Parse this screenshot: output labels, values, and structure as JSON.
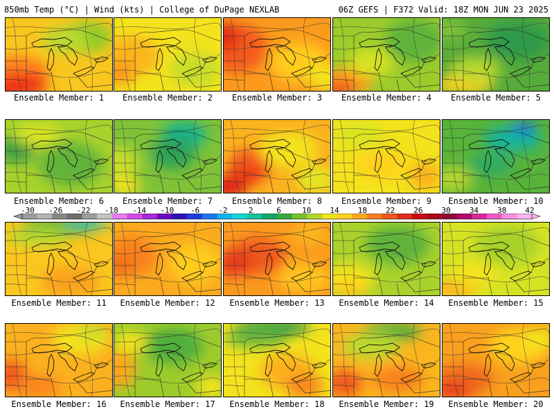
{
  "header": {
    "left": "850mb Temp (°C) | Wind (kts) | College of DuPage NEXLAB",
    "right": "06Z GEFS | F372 Valid: 18Z MON JUN 23 2025"
  },
  "panels": [
    {
      "label": "Ensemble Member: 1",
      "base": "#f9c61f",
      "blobs": [
        [
          "#ff7d1f",
          0.1,
          0.75,
          0.5,
          0.4
        ],
        [
          "#d60a15",
          0.05,
          0.95,
          0.35,
          0.22
        ],
        [
          "#ee3219",
          0.15,
          0.9,
          0.4,
          0.25
        ],
        [
          "#91cb2c",
          0.75,
          0.25,
          0.4,
          0.35
        ],
        [
          "#b9d92e",
          0.55,
          0.3,
          0.35,
          0.3
        ]
      ]
    },
    {
      "label": "Ensemble Member: 2",
      "base": "#f3e31c",
      "blobs": [
        [
          "#fbb51f",
          0.15,
          0.5,
          0.45,
          0.45
        ],
        [
          "#c9dd2a",
          0.75,
          0.7,
          0.4,
          0.4
        ],
        [
          "#f9961e",
          0.05,
          0.75,
          0.25,
          0.25
        ]
      ]
    },
    {
      "label": "Ensemble Member: 3",
      "base": "#fb9b1e",
      "blobs": [
        [
          "#f35a1d",
          0.1,
          0.4,
          0.5,
          0.55
        ],
        [
          "#ffcc1f",
          0.7,
          0.6,
          0.45,
          0.45
        ],
        [
          "#f3e31c",
          0.95,
          0.8,
          0.3,
          0.3
        ],
        [
          "#e62a19",
          0.0,
          0.25,
          0.25,
          0.3
        ]
      ]
    },
    {
      "label": "Ensemble Member: 4",
      "base": "#9ccc2c",
      "blobs": [
        [
          "#5fb33b",
          0.75,
          0.3,
          0.45,
          0.5
        ],
        [
          "#ffa21f",
          0.1,
          0.85,
          0.45,
          0.3
        ],
        [
          "#f35a1d",
          0.05,
          0.95,
          0.3,
          0.2
        ],
        [
          "#d7e324",
          0.35,
          0.6,
          0.35,
          0.3
        ]
      ]
    },
    {
      "label": "Ensemble Member: 5",
      "base": "#57ab3a",
      "blobs": [
        [
          "#2e9a4a",
          0.7,
          0.3,
          0.5,
          0.45
        ],
        [
          "#ffd21f",
          0.2,
          0.9,
          0.45,
          0.22
        ],
        [
          "#b7d82e",
          0.3,
          0.7,
          0.4,
          0.3
        ],
        [
          "#7fc238",
          0.05,
          0.15,
          0.3,
          0.25
        ]
      ]
    },
    {
      "label": "Ensemble Member: 6",
      "base": "#a7d22c",
      "blobs": [
        [
          "#62b33a",
          0.6,
          0.6,
          0.5,
          0.5
        ],
        [
          "#3f9f44",
          0.1,
          0.4,
          0.3,
          0.3
        ],
        [
          "#d9e424",
          0.3,
          0.2,
          0.35,
          0.25
        ]
      ]
    },
    {
      "label": "Ensemble Member: 7",
      "base": "#7fc238",
      "blobs": [
        [
          "#16b48c",
          0.65,
          0.2,
          0.35,
          0.3
        ],
        [
          "#2fa257",
          0.55,
          0.45,
          0.35,
          0.35
        ],
        [
          "#c8dd2a",
          0.05,
          0.6,
          0.3,
          0.4
        ],
        [
          "#f3e31c",
          0.1,
          0.9,
          0.25,
          0.2
        ]
      ]
    },
    {
      "label": "Ensemble Member: 8",
      "base": "#fbb21f",
      "blobs": [
        [
          "#f35a1d",
          0.25,
          0.6,
          0.35,
          0.35
        ],
        [
          "#d60a15",
          0.05,
          0.9,
          0.3,
          0.2
        ],
        [
          "#ee3a19",
          0.2,
          0.75,
          0.3,
          0.2
        ],
        [
          "#f3e31c",
          0.6,
          0.4,
          0.45,
          0.4
        ],
        [
          "#e4e624",
          0.85,
          0.8,
          0.3,
          0.3
        ]
      ]
    },
    {
      "label": "Ensemble Member: 9",
      "base": "#f3e31c",
      "blobs": [
        [
          "#dbe423",
          0.25,
          0.2,
          0.4,
          0.3
        ],
        [
          "#ffd21f",
          0.45,
          0.6,
          0.4,
          0.35
        ],
        [
          "#fbb01f",
          0.85,
          0.75,
          0.25,
          0.3
        ]
      ]
    },
    {
      "label": "Ensemble Member: 10",
      "base": "#58b33a",
      "blobs": [
        [
          "#12b39a",
          0.65,
          0.25,
          0.45,
          0.3
        ],
        [
          "#1e7cf0",
          0.75,
          0.1,
          0.2,
          0.12
        ],
        [
          "#0c3ed0",
          0.8,
          0.1,
          0.08,
          0.08
        ],
        [
          "#b3d62e",
          0.1,
          0.8,
          0.3,
          0.3
        ],
        [
          "#2eaa62",
          0.45,
          0.6,
          0.35,
          0.25
        ]
      ]
    },
    {
      "label": "Ensemble Member: 11",
      "base": "#fbc61f",
      "blobs": [
        [
          "#58b33a",
          0.5,
          0.05,
          0.6,
          0.2
        ],
        [
          "#18c0b8",
          0.75,
          0.0,
          0.35,
          0.12
        ],
        [
          "#b9d92e",
          0.3,
          0.2,
          0.5,
          0.2
        ],
        [
          "#f9a31e",
          0.6,
          0.8,
          0.45,
          0.35
        ]
      ]
    },
    {
      "label": "Ensemble Member: 12",
      "base": "#fbaa1f",
      "blobs": [
        [
          "#f9811e",
          0.15,
          0.45,
          0.4,
          0.45
        ],
        [
          "#f06a1e",
          0.05,
          0.6,
          0.2,
          0.2
        ],
        [
          "#ffcc1f",
          0.75,
          0.55,
          0.4,
          0.45
        ]
      ]
    },
    {
      "label": "Ensemble Member: 13",
      "base": "#fb9a1e",
      "blobs": [
        [
          "#f0581d",
          0.3,
          0.45,
          0.45,
          0.4
        ],
        [
          "#e83e1a",
          0.1,
          0.55,
          0.3,
          0.3
        ],
        [
          "#ffc41f",
          0.75,
          0.75,
          0.4,
          0.35
        ],
        [
          "#fbb51f",
          0.8,
          0.15,
          0.3,
          0.25
        ]
      ]
    },
    {
      "label": "Ensemble Member: 14",
      "base": "#aad22c",
      "blobs": [
        [
          "#5fb33b",
          0.6,
          0.3,
          0.5,
          0.45
        ],
        [
          "#f3e31c",
          0.15,
          0.75,
          0.4,
          0.35
        ],
        [
          "#ffcc1f",
          0.15,
          0.9,
          0.3,
          0.2
        ]
      ]
    },
    {
      "label": "Ensemble Member: 15",
      "base": "#d6e324",
      "blobs": [
        [
          "#a7d22c",
          0.6,
          0.3,
          0.5,
          0.45
        ],
        [
          "#f9b41f",
          0.1,
          0.9,
          0.4,
          0.2
        ],
        [
          "#f3e31c",
          0.3,
          0.7,
          0.35,
          0.3
        ]
      ]
    },
    {
      "label": "Ensemble Member: 16",
      "base": "#fbb01f",
      "blobs": [
        [
          "#f35a1d",
          0.05,
          0.7,
          0.25,
          0.35
        ],
        [
          "#f3e31c",
          0.7,
          0.2,
          0.45,
          0.35
        ],
        [
          "#cadd2a",
          0.8,
          0.1,
          0.25,
          0.2
        ],
        [
          "#f9851e",
          0.3,
          0.85,
          0.35,
          0.25
        ]
      ]
    },
    {
      "label": "Ensemble Member: 17",
      "base": "#9ccc2c",
      "blobs": [
        [
          "#4fae3d",
          0.55,
          0.3,
          0.45,
          0.4
        ],
        [
          "#fba61f",
          0.05,
          0.6,
          0.25,
          0.45
        ],
        [
          "#f3e31c",
          0.15,
          0.25,
          0.25,
          0.25
        ],
        [
          "#f3e31c",
          0.9,
          0.85,
          0.25,
          0.25
        ]
      ]
    },
    {
      "label": "Ensemble Member: 18",
      "base": "#f3e31c",
      "blobs": [
        [
          "#2e9a4a",
          0.45,
          0.05,
          0.6,
          0.18
        ],
        [
          "#6db93a",
          0.3,
          0.2,
          0.5,
          0.2
        ],
        [
          "#fbb01f",
          0.6,
          0.65,
          0.45,
          0.4
        ],
        [
          "#f9851e",
          0.75,
          0.85,
          0.3,
          0.25
        ]
      ]
    },
    {
      "label": "Ensemble Member: 19",
      "base": "#fbb51f",
      "blobs": [
        [
          "#4fae3d",
          0.55,
          0.1,
          0.45,
          0.2
        ],
        [
          "#bcd92e",
          0.35,
          0.3,
          0.45,
          0.3
        ],
        [
          "#f35a1d",
          0.1,
          0.8,
          0.3,
          0.3
        ],
        [
          "#f9811e",
          0.6,
          0.75,
          0.4,
          0.3
        ]
      ]
    },
    {
      "label": "Ensemble Member: 20",
      "base": "#f9a01e",
      "blobs": [
        [
          "#f06a1e",
          0.2,
          0.75,
          0.45,
          0.35
        ],
        [
          "#e83e1a",
          0.1,
          0.9,
          0.3,
          0.2
        ],
        [
          "#ffd21f",
          0.7,
          0.3,
          0.45,
          0.4
        ],
        [
          "#f3e31c",
          0.9,
          0.2,
          0.25,
          0.25
        ]
      ]
    }
  ],
  "colorbar": {
    "ticks": [
      "-30",
      "-26",
      "-22",
      "-18",
      "-14",
      "-10",
      "-6",
      "-2",
      "2",
      "6",
      "10",
      "14",
      "18",
      "22",
      "26",
      "30",
      "34",
      "38",
      "42"
    ],
    "colors": [
      "#9aa0a0",
      "#b4b4b4",
      "#868686",
      "#6f6f6f",
      "#9e9e9e",
      "#c4c4c4",
      "#e87cf0",
      "#d64ae8",
      "#a82ad8",
      "#6a0ac0",
      "#2e14b4",
      "#1e3ce0",
      "#1e78f0",
      "#12b4f0",
      "#18d4d8",
      "#18c49a",
      "#10a86a",
      "#38a83a",
      "#78c030",
      "#b4d82a",
      "#f0e81a",
      "#ffd01e",
      "#fba81e",
      "#f9801e",
      "#f0581d",
      "#e42c1a",
      "#c80c12",
      "#a80a1a",
      "#8c0a30",
      "#b40a6a",
      "#d82a9a",
      "#f058c8",
      "#f890e0",
      "#fbb4ec"
    ]
  }
}
